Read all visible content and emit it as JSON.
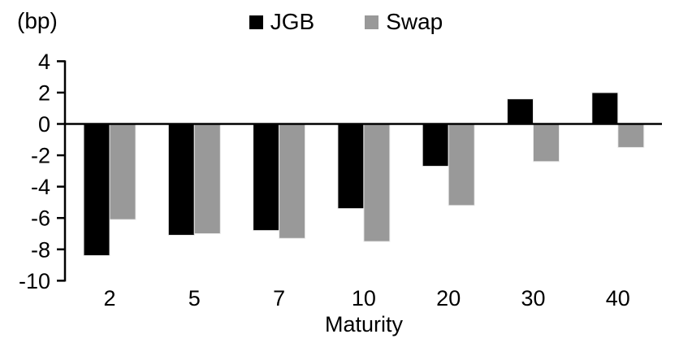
{
  "chart_data": {
    "type": "bar",
    "unit_label": "(bp)",
    "xlabel": "Maturity",
    "categories": [
      "2",
      "5",
      "7",
      "10",
      "20",
      "30",
      "40"
    ],
    "series": [
      {
        "name": "JGB",
        "color": "#000000",
        "values": [
          -8.4,
          -7.1,
          -6.8,
          -5.4,
          -2.7,
          1.6,
          2.0
        ]
      },
      {
        "name": "Swap",
        "color": "#999999",
        "values": [
          -6.1,
          -7.0,
          -7.3,
          -7.5,
          -5.2,
          -2.4,
          -1.5
        ]
      }
    ],
    "yticks": [
      4,
      2,
      0,
      -2,
      -4,
      -6,
      -8,
      -10
    ],
    "ylim": [
      -10,
      4
    ],
    "ytick_step": 2,
    "grid": false,
    "legend_position": "top-center",
    "axis_color": "#000000",
    "background_color": "#ffffff"
  }
}
